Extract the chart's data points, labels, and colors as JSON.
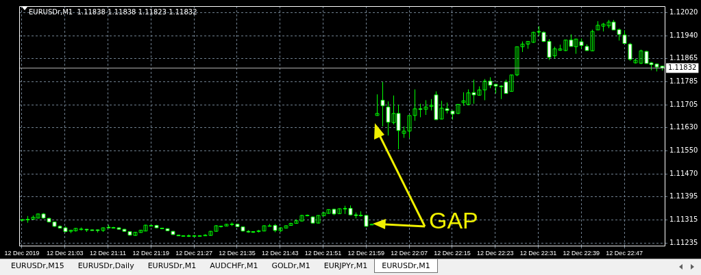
{
  "chart_data": {
    "type": "candlestick",
    "title": "EURUSDr,M1  1.11838 1.11838 1.11823 1.11832",
    "color": "#00ff00",
    "categories": [
      "12 Dec 2019",
      null,
      null,
      null,
      null,
      null,
      null,
      null,
      "12 Dec 21:03",
      null,
      null,
      null,
      null,
      null,
      null,
      null,
      "12 Dec 21:11",
      null,
      null,
      null,
      null,
      null,
      null,
      null,
      "12 Dec 21:19",
      null,
      null,
      null,
      null,
      null,
      null,
      null,
      "12 Dec 21:27",
      null,
      null,
      null,
      null,
      null,
      null,
      null,
      "12 Dec 21:35",
      null,
      null,
      null,
      null,
      null,
      null,
      null,
      "12 Dec 21:43",
      null,
      null,
      null,
      null,
      null,
      null,
      null,
      "12 Dec 21:51",
      null,
      null,
      null,
      null,
      null,
      null,
      null,
      "12 Dec 21:59",
      null,
      null,
      null,
      null,
      null,
      null,
      null,
      "12 Dec 22:07",
      null,
      null,
      null,
      null,
      null,
      null,
      null,
      "12 Dec 22:15",
      null,
      null,
      null,
      null,
      null,
      null,
      null,
      "12 Dec 22:23",
      null,
      null,
      null,
      null,
      null,
      null,
      null,
      "12 Dec 22:31",
      null,
      null,
      null,
      null,
      null,
      null,
      null,
      "12 Dec 22:39",
      null,
      null,
      null,
      null,
      null,
      null,
      null,
      "12 Dec 22:47",
      null,
      null,
      null,
      null,
      null,
      null,
      null
    ],
    "ohlc": [
      [
        1.11315,
        1.11318,
        1.1131,
        1.11316
      ],
      [
        1.11316,
        1.11328,
        1.11305,
        1.11317
      ],
      [
        1.11317,
        1.1133,
        1.11316,
        1.11324
      ],
      [
        1.11321,
        1.11336,
        1.1132,
        1.11335
      ],
      [
        1.11335,
        1.11338,
        1.11319,
        1.11321
      ],
      [
        1.1132,
        1.11322,
        1.11306,
        1.11308
      ],
      [
        1.11308,
        1.11309,
        1.11291,
        1.11293
      ],
      [
        1.11293,
        1.11296,
        1.11285,
        1.11287
      ],
      [
        1.11288,
        1.11292,
        1.11273,
        1.11275
      ],
      [
        1.11276,
        1.11281,
        1.1127,
        1.1128
      ],
      [
        1.11278,
        1.11287,
        1.11275,
        1.11286
      ],
      [
        1.11284,
        1.11289,
        1.11279,
        1.11284
      ],
      [
        1.11283,
        1.11284,
        1.11274,
        1.11282
      ],
      [
        1.11281,
        1.11282,
        1.11279,
        1.1128
      ],
      [
        1.11281,
        1.11282,
        1.11272,
        1.1128
      ],
      [
        1.11279,
        1.11289,
        1.11274,
        1.11288
      ],
      [
        1.1129,
        1.11298,
        1.11287,
        1.11288
      ],
      [
        1.11289,
        1.11291,
        1.11287,
        1.11289
      ],
      [
        1.11288,
        1.11289,
        1.11282,
        1.11283
      ],
      [
        1.11283,
        1.11284,
        1.11275,
        1.11276
      ],
      [
        1.11275,
        1.11276,
        1.11261,
        1.11263
      ],
      [
        1.11262,
        1.11274,
        1.11261,
        1.11273
      ],
      [
        1.11272,
        1.11281,
        1.11271,
        1.1128
      ],
      [
        1.11277,
        1.11298,
        1.11276,
        1.11297
      ],
      [
        1.11296,
        1.11298,
        1.11294,
        1.11296
      ],
      [
        1.11296,
        1.11298,
        1.11287,
        1.11288
      ],
      [
        1.11287,
        1.11288,
        1.11285,
        1.11286
      ],
      [
        1.11285,
        1.11286,
        1.11277,
        1.11278
      ],
      [
        1.11276,
        1.11277,
        1.11264,
        1.11265
      ],
      [
        1.11263,
        1.11264,
        1.11261,
        1.11262
      ],
      [
        1.11261,
        1.11262,
        1.11259,
        1.11261
      ],
      [
        1.11261,
        1.11265,
        1.11257,
        1.1126
      ],
      [
        1.11261,
        1.11263,
        1.11259,
        1.11261
      ],
      [
        1.11261,
        1.11262,
        1.1126,
        1.11261
      ],
      [
        1.11262,
        1.11266,
        1.11261,
        1.11263
      ],
      [
        1.11262,
        1.11277,
        1.11261,
        1.11276
      ],
      [
        1.11276,
        1.11297,
        1.11275,
        1.11295
      ],
      [
        1.11294,
        1.11295,
        1.11289,
        1.11294
      ],
      [
        1.11294,
        1.11301,
        1.11293,
        1.113
      ],
      [
        1.113,
        1.11306,
        1.11294,
        1.11301
      ],
      [
        1.113,
        1.11301,
        1.11291,
        1.11292
      ],
      [
        1.11291,
        1.11292,
        1.11275,
        1.11277
      ],
      [
        1.11276,
        1.1128,
        1.11271,
        1.11275
      ],
      [
        1.11275,
        1.11276,
        1.11271,
        1.11274
      ],
      [
        1.11275,
        1.11281,
        1.11272,
        1.11278
      ],
      [
        1.11277,
        1.11296,
        1.11276,
        1.11295
      ],
      [
        1.11295,
        1.11301,
        1.11293,
        1.11295
      ],
      [
        1.11296,
        1.11301,
        1.11273,
        1.11279
      ],
      [
        1.11278,
        1.1129,
        1.11274,
        1.11288
      ],
      [
        1.11287,
        1.11296,
        1.11286,
        1.11295
      ],
      [
        1.11296,
        1.11305,
        1.11295,
        1.11303
      ],
      [
        1.11303,
        1.11317,
        1.11302,
        1.11312
      ],
      [
        1.11311,
        1.11332,
        1.1131,
        1.1133
      ],
      [
        1.11329,
        1.11333,
        1.11327,
        1.11331
      ],
      [
        1.11325,
        1.11327,
        1.11303,
        1.11304
      ],
      [
        1.11304,
        1.11331,
        1.11303,
        1.1133
      ],
      [
        1.11329,
        1.1134,
        1.11328,
        1.11339
      ],
      [
        1.11337,
        1.11351,
        1.11336,
        1.1135
      ],
      [
        1.11351,
        1.11353,
        1.11331,
        1.11335
      ],
      [
        1.11336,
        1.11354,
        1.11335,
        1.11353
      ],
      [
        1.11352,
        1.11363,
        1.11335,
        1.11354
      ],
      [
        1.11354,
        1.11364,
        1.1133,
        1.11332
      ],
      [
        1.11332,
        1.1134,
        1.1132,
        1.11331
      ],
      [
        1.11331,
        1.11344,
        1.11326,
        1.1133
      ],
      [
        1.1133,
        1.11332,
        1.11291,
        1.11293
      ],
      [
        1.113,
        1.11301,
        1.11299,
        1.113
      ],
      [
        1.1167,
        1.11742,
        1.11669,
        1.11677
      ],
      [
        1.11722,
        1.11784,
        1.11633,
        1.11703
      ],
      [
        1.11699,
        1.11718,
        1.11602,
        1.11647
      ],
      [
        1.11646,
        1.11738,
        1.1164,
        1.11677
      ],
      [
        1.11677,
        1.11707,
        1.11555,
        1.11619
      ],
      [
        1.11609,
        1.11633,
        1.11594,
        1.11617
      ],
      [
        1.11617,
        1.1167,
        1.11594,
        1.1167
      ],
      [
        1.1167,
        1.11759,
        1.11652,
        1.11693
      ],
      [
        1.11693,
        1.1171,
        1.11664,
        1.11692
      ],
      [
        1.11691,
        1.11722,
        1.11672,
        1.11699
      ],
      [
        1.11701,
        1.11726,
        1.11687,
        1.11705
      ],
      [
        1.1174,
        1.11752,
        1.11655,
        1.11656
      ],
      [
        1.11658,
        1.1172,
        1.11657,
        1.11695
      ],
      [
        1.11693,
        1.11714,
        1.11677,
        1.11687
      ],
      [
        1.11685,
        1.11687,
        1.11656,
        1.11675
      ],
      [
        1.11677,
        1.11709,
        1.11675,
        1.11708
      ],
      [
        1.11714,
        1.11749,
        1.11703,
        1.1172
      ],
      [
        1.11707,
        1.11759,
        1.11705,
        1.11747
      ],
      [
        1.11748,
        1.11792,
        1.1171,
        1.1174
      ],
      [
        1.11739,
        1.11769,
        1.11738,
        1.11757
      ],
      [
        1.11757,
        1.11794,
        1.11722,
        1.11787
      ],
      [
        1.11787,
        1.118,
        1.11763,
        1.11773
      ],
      [
        1.11776,
        1.11778,
        1.11745,
        1.1177
      ],
      [
        1.1177,
        1.11773,
        1.11726,
        1.11769
      ],
      [
        1.11784,
        1.11792,
        1.11745,
        1.11745
      ],
      [
        1.11752,
        1.11808,
        1.11751,
        1.11808
      ],
      [
        1.11808,
        1.11904,
        1.11804,
        1.11904
      ],
      [
        1.11904,
        1.11922,
        1.11886,
        1.11913
      ],
      [
        1.11913,
        1.11922,
        1.11897,
        1.11922
      ],
      [
        1.11919,
        1.11955,
        1.11917,
        1.11953
      ],
      [
        1.11956,
        1.11974,
        1.1194,
        1.11956
      ],
      [
        1.11953,
        1.11956,
        1.1192,
        1.11922
      ],
      [
        1.11922,
        1.1193,
        1.11859,
        1.11868
      ],
      [
        1.11873,
        1.11904,
        1.11865,
        1.11897
      ],
      [
        1.11892,
        1.11911,
        1.1189,
        1.11897
      ],
      [
        1.11891,
        1.11927,
        1.11889,
        1.11927
      ],
      [
        1.11927,
        1.11946,
        1.11905,
        1.11905
      ],
      [
        1.11904,
        1.11931,
        1.1188,
        1.1193
      ],
      [
        1.11921,
        1.11932,
        1.11897,
        1.11908
      ],
      [
        1.11905,
        1.11912,
        1.1189,
        1.11891
      ],
      [
        1.1189,
        1.11962,
        1.11889,
        1.11956
      ],
      [
        1.11961,
        1.11991,
        1.11961,
        1.11977
      ],
      [
        1.11974,
        1.11985,
        1.11956,
        1.11981
      ],
      [
        1.11975,
        1.11995,
        1.11967,
        1.11988
      ],
      [
        1.11988,
        1.11995,
        1.11961,
        1.11961
      ],
      [
        1.11962,
        1.11966,
        1.11925,
        1.11946
      ],
      [
        1.11944,
        1.1196,
        1.11914,
        1.11915
      ],
      [
        1.11913,
        1.11917,
        1.11856,
        1.11861
      ],
      [
        1.11849,
        1.11864,
        1.11847,
        1.11858
      ],
      [
        1.11848,
        1.11894,
        1.11845,
        1.1189
      ],
      [
        1.11888,
        1.1189,
        1.11847,
        1.11847
      ],
      [
        1.11849,
        1.11852,
        1.11824,
        1.11843
      ],
      [
        1.11845,
        1.11847,
        1.1182,
        1.11835
      ],
      [
        1.11838,
        1.11838,
        1.11823,
        1.11832
      ]
    ],
    "colors": [
      "#00ff00",
      "#00ff00",
      "#00ff00",
      "#00ff00",
      "#ffffff",
      "#ffffff",
      "#ffffff",
      "#ffffff",
      "#ffffff",
      "#00ff00",
      "#00ff00",
      "#00ff00",
      "#ffffff",
      "#ffffff",
      "#ffffff",
      "#00ff00",
      "#ffffff",
      "#00ff00",
      "#ffffff",
      "#ffffff",
      "#ffffff",
      "#00ff00",
      "#00ff00",
      "#00ff00",
      "#00ff00",
      "#ffffff",
      "#ffffff",
      "#ffffff",
      "#ffffff",
      "#ffffff",
      "#00ff00",
      "#ffffff",
      "#00ff00",
      "#00ff00",
      "#00ff00",
      "#00ff00",
      "#00ff00",
      "#00ff00",
      "#00ff00",
      "#00ff00",
      "#ffffff",
      "#ffffff",
      "#ffffff",
      "#ffffff",
      "#00ff00",
      "#00ff00",
      "#00ff00",
      "#ffffff",
      "#00ff00",
      "#00ff00",
      "#00ff00",
      "#00ff00",
      "#00ff00",
      "#00ff00",
      "#ffffff",
      "#00ff00",
      "#00ff00",
      "#00ff00",
      "#ffffff",
      "#00ff00",
      "#00ff00",
      "#ffffff",
      "#ffffff",
      "#ffffff",
      "#ffffff",
      "#00ff00",
      "#00ff00",
      "#ffffff",
      "#ffffff",
      "#00ff00",
      "#ffffff",
      "#00ff00",
      "#00ff00",
      "#00ff00",
      "#ffffff",
      "#00ff00",
      "#00ff00",
      "#ffffff",
      "#00ff00",
      "#ffffff",
      "#ffffff",
      "#00ff00",
      "#00ff00",
      "#00ff00",
      "#ffffff",
      "#00ff00",
      "#00ff00",
      "#ffffff",
      "#ffffff",
      "#ffffff",
      "#ffffff",
      "#00ff00",
      "#00ff00",
      "#00ff00",
      "#00ff00",
      "#00ff00",
      "#00ff00",
      "#ffffff",
      "#ffffff",
      "#00ff00",
      "#00ff00",
      "#00ff00",
      "#ffffff",
      "#00ff00",
      "#ffffff",
      "#ffffff",
      "#00ff00",
      "#00ff00",
      "#00ff00",
      "#00ff00",
      "#ffffff",
      "#ffffff",
      "#ffffff",
      "#ffffff",
      "#00ff00",
      "#00ff00",
      "#ffffff",
      "#ffffff",
      "#ffffff",
      "#ffffff"
    ],
    "ylim": [
      1.11227,
      1.12042
    ],
    "yticks": [
      {
        "value": 1.11235,
        "label": "1.11235"
      },
      {
        "value": 1.11315,
        "label": "1.11315"
      },
      {
        "value": 1.11395,
        "label": "1.11395"
      },
      {
        "value": 1.1147,
        "label": "1.11470"
      },
      {
        "value": 1.1155,
        "label": "1.11550"
      },
      {
        "value": 1.1163,
        "label": "1.11630"
      },
      {
        "value": 1.11705,
        "label": "1.11705"
      },
      {
        "value": 1.11785,
        "label": "1.11785"
      },
      {
        "value": 1.11865,
        "label": "1.11865"
      },
      {
        "value": 1.1194,
        "label": "1.11940"
      },
      {
        "value": 1.1202,
        "label": "1.12020"
      }
    ],
    "ref_lines": [
      {
        "axis": "y",
        "value": 1.11832,
        "label": "1.11832",
        "color": "#b0b0b0"
      }
    ],
    "annotations": [
      "GAP",
      "EURUSDr,M15",
      "EURUSDr,Daily",
      "EURUSDr,M1",
      "AUDCHFr,M1",
      "GOLDr,M1",
      "EURJPYr,M1",
      "EURUSDr,M1"
    ],
    "grid": true,
    "legend": false
  }
}
